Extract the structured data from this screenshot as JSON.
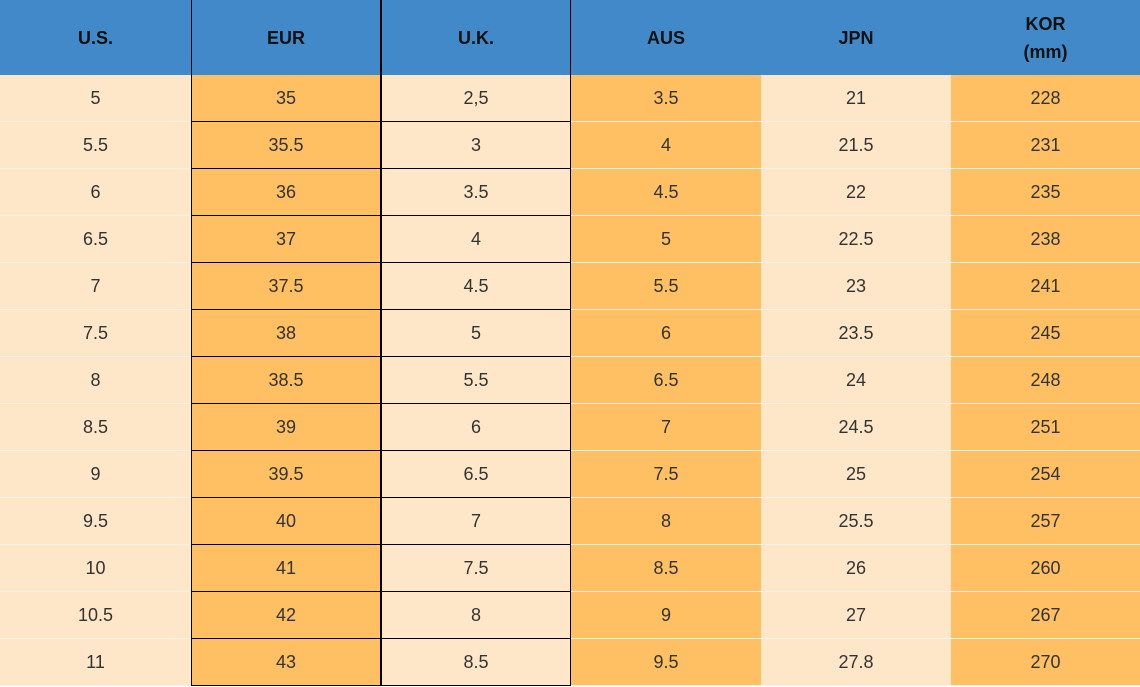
{
  "table": {
    "headers": [
      "U.S.",
      "EUR",
      "U.K.",
      "AUS",
      "JPN",
      "KOR\n(mm)"
    ],
    "rows": [
      [
        "5",
        "35",
        "2,5",
        "3.5",
        "21",
        "228"
      ],
      [
        "5.5",
        "35.5",
        "3",
        "4",
        "21.5",
        "231"
      ],
      [
        "6",
        "36",
        "3.5",
        "4.5",
        "22",
        "235"
      ],
      [
        "6.5",
        "37",
        "4",
        "5",
        "22.5",
        "238"
      ],
      [
        "7",
        "37.5",
        "4.5",
        "5.5",
        "23",
        "241"
      ],
      [
        "7.5",
        "38",
        "5",
        "6",
        "23.5",
        "245"
      ],
      [
        "8",
        "38.5",
        "5.5",
        "6.5",
        "24",
        "248"
      ],
      [
        "8.5",
        "39",
        "6",
        "7",
        "24.5",
        "251"
      ],
      [
        "9",
        "39.5",
        "6.5",
        "7.5",
        "25",
        "254"
      ],
      [
        "9.5",
        "40",
        "7",
        "8",
        "25.5",
        "257"
      ],
      [
        "10",
        "41",
        "7.5",
        "8.5",
        "26",
        "260"
      ],
      [
        "10.5",
        "42",
        "8",
        "9",
        "27",
        "267"
      ],
      [
        "11",
        "43",
        "8.5",
        "9.5",
        "27.8",
        "270"
      ]
    ]
  }
}
